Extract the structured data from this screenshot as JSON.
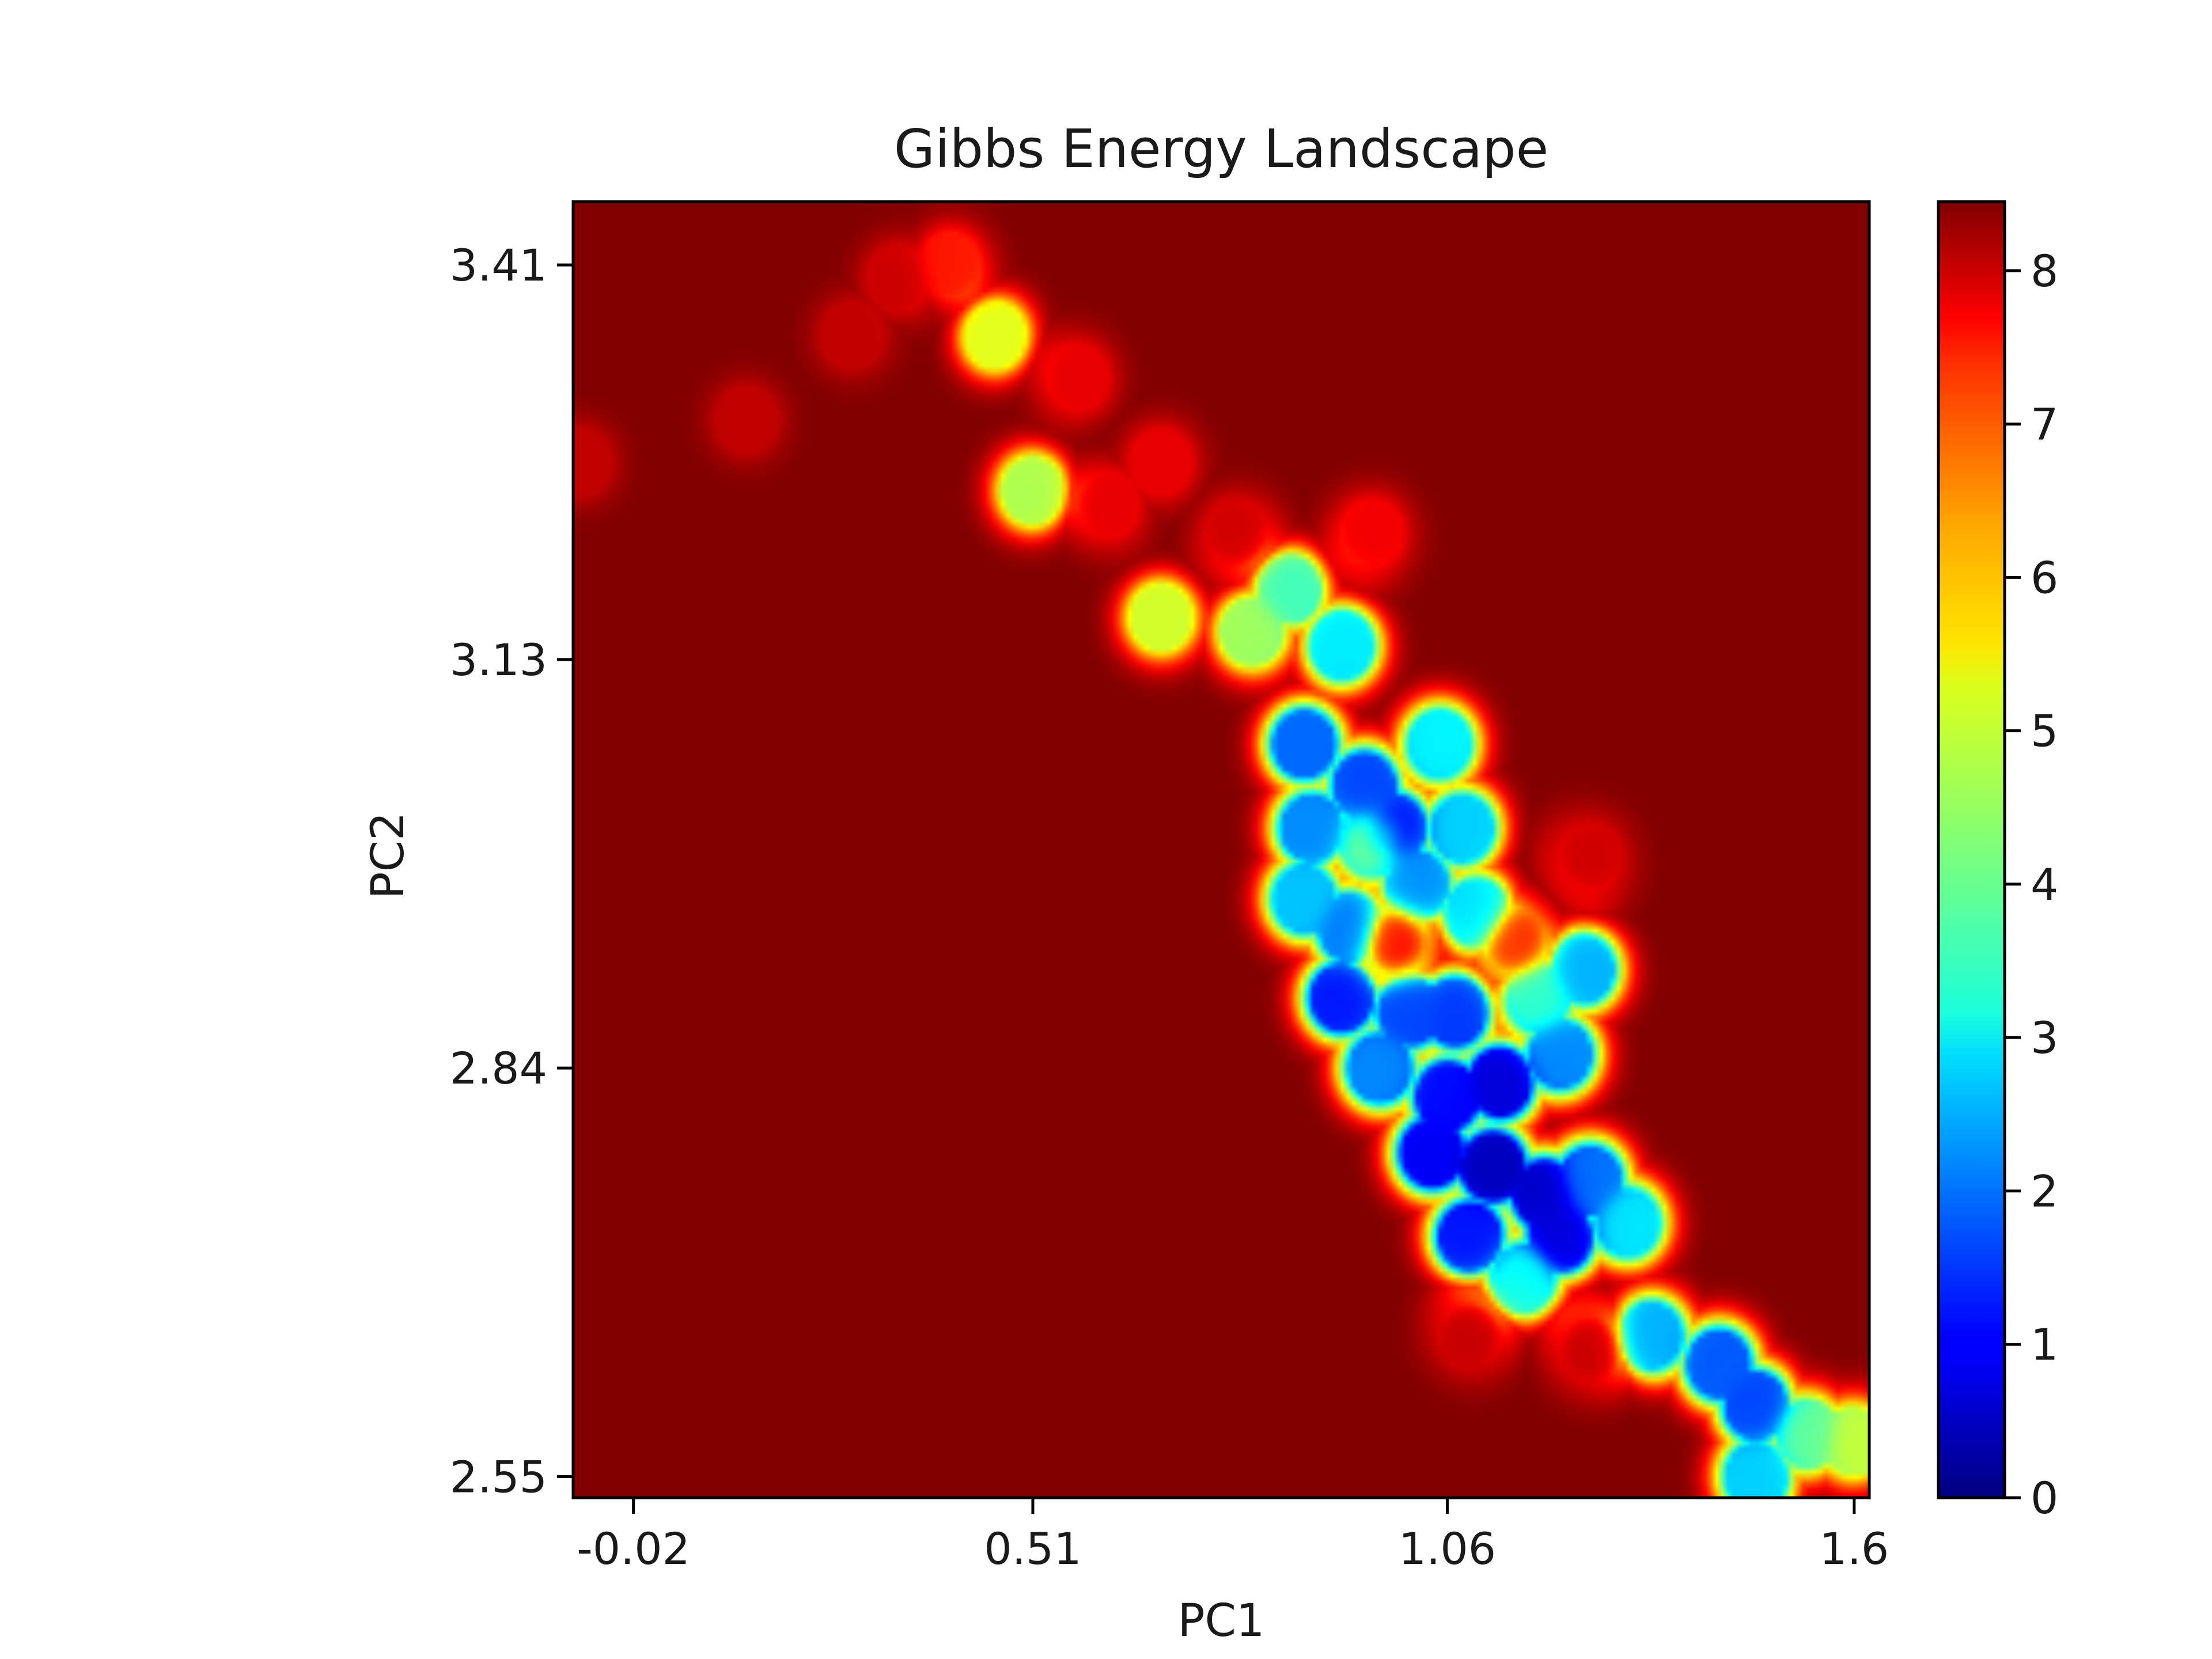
{
  "chart_data": {
    "type": "heatmap",
    "title": "Gibbs Energy Landscape",
    "xlabel": "PC1",
    "ylabel": "PC2",
    "xticks": [
      -0.02,
      0.51,
      1.06,
      1.6
    ],
    "xtick_labels": [
      "-0.02",
      "0.51",
      "1.06",
      "1.6"
    ],
    "yticks": [
      2.55,
      2.84,
      3.13,
      3.41
    ],
    "ytick_labels": [
      "2.55",
      "2.84",
      "3.13",
      "3.41"
    ],
    "xlim": [
      -0.1,
      1.62
    ],
    "ylim": [
      2.535,
      3.455
    ],
    "colormap": "jet",
    "colorbar": {
      "range": [
        0,
        8.45
      ],
      "ticks": [
        0,
        1,
        2,
        3,
        4,
        5,
        6,
        7,
        8
      ],
      "tick_labels": [
        "0",
        "1",
        "2",
        "3",
        "4",
        "5",
        "6",
        "7",
        "8"
      ]
    },
    "background_value": 8.45,
    "basin": {
      "description_points": "approximate free-energy values (PC1, PC2, G) read from the landscape",
      "points": [
        [
          0.4,
          3.41,
          7.2
        ],
        [
          0.46,
          3.36,
          5.0
        ],
        [
          0.33,
          3.4,
          7.8
        ],
        [
          0.27,
          3.36,
          7.9
        ],
        [
          0.13,
          3.3,
          7.9
        ],
        [
          -0.09,
          3.27,
          7.9
        ],
        [
          0.57,
          3.33,
          7.6
        ],
        [
          0.51,
          3.25,
          4.6
        ],
        [
          0.61,
          3.24,
          7.6
        ],
        [
          0.68,
          3.27,
          7.6
        ],
        [
          0.68,
          3.16,
          4.9
        ],
        [
          0.78,
          3.22,
          7.8
        ],
        [
          0.85,
          3.18,
          3.7
        ],
        [
          0.96,
          3.22,
          7.5
        ],
        [
          0.8,
          3.15,
          4.5
        ],
        [
          0.92,
          3.14,
          3.0
        ],
        [
          0.87,
          3.07,
          1.9
        ],
        [
          0.95,
          3.04,
          1.6
        ],
        [
          1.05,
          3.07,
          3.1
        ],
        [
          1.08,
          3.01,
          2.8
        ],
        [
          0.88,
          3.01,
          2.2
        ],
        [
          0.99,
          3.01,
          1.0
        ],
        [
          0.96,
          3.0,
          4.3
        ],
        [
          1.02,
          2.97,
          2.2
        ],
        [
          1.1,
          2.95,
          2.9
        ],
        [
          0.87,
          2.96,
          2.7
        ],
        [
          0.93,
          2.94,
          2.0
        ],
        [
          0.99,
          2.93,
          7.6
        ],
        [
          0.92,
          2.89,
          1.2
        ],
        [
          1.01,
          2.88,
          1.6
        ],
        [
          1.07,
          2.88,
          1.5
        ],
        [
          1.18,
          2.89,
          3.6
        ],
        [
          1.24,
          2.91,
          2.5
        ],
        [
          1.15,
          2.93,
          7.2
        ],
        [
          0.97,
          2.84,
          2.2
        ],
        [
          1.06,
          2.82,
          1.1
        ],
        [
          1.13,
          2.83,
          0.7
        ],
        [
          1.21,
          2.85,
          2.2
        ],
        [
          1.04,
          2.78,
          1.0
        ],
        [
          1.12,
          2.77,
          0.5
        ],
        [
          1.19,
          2.75,
          0.6
        ],
        [
          1.25,
          2.76,
          2.0
        ],
        [
          1.09,
          2.72,
          1.2
        ],
        [
          1.21,
          2.72,
          0.7
        ],
        [
          1.3,
          2.73,
          3.0
        ],
        [
          1.16,
          2.69,
          3.3
        ],
        [
          1.33,
          2.65,
          2.5
        ],
        [
          1.42,
          2.63,
          1.8
        ],
        [
          1.47,
          2.6,
          1.6
        ],
        [
          1.47,
          2.55,
          2.8
        ],
        [
          1.54,
          2.58,
          4.0
        ],
        [
          1.6,
          2.575,
          4.8
        ],
        [
          1.25,
          2.99,
          7.8
        ],
        [
          1.25,
          2.64,
          7.9
        ],
        [
          1.09,
          2.65,
          7.9
        ]
      ]
    }
  }
}
